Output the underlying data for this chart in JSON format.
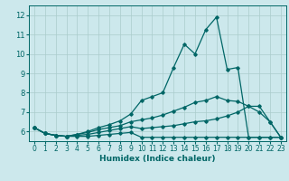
{
  "xlabel": "Humidex (Indice chaleur)",
  "bg_color": "#cce8ec",
  "line_color": "#006666",
  "grid_color": "#aacccc",
  "x": [
    0,
    1,
    2,
    3,
    4,
    5,
    6,
    7,
    8,
    9,
    10,
    11,
    12,
    13,
    14,
    15,
    16,
    17,
    18,
    19,
    20,
    21,
    22,
    23
  ],
  "series": [
    [
      6.2,
      5.9,
      5.8,
      5.75,
      5.75,
      5.75,
      5.8,
      5.85,
      5.9,
      5.95,
      5.7,
      5.7,
      5.7,
      5.7,
      5.7,
      5.7,
      5.7,
      5.7,
      5.7,
      5.7,
      5.7,
      5.7,
      5.7,
      5.7
    ],
    [
      6.2,
      5.9,
      5.8,
      5.75,
      5.8,
      5.85,
      5.95,
      6.05,
      6.15,
      6.25,
      6.15,
      6.2,
      6.25,
      6.3,
      6.4,
      6.5,
      6.55,
      6.65,
      6.8,
      7.0,
      7.3,
      7.3,
      6.5,
      5.7
    ],
    [
      6.2,
      5.9,
      5.8,
      5.75,
      5.85,
      5.95,
      6.1,
      6.2,
      6.3,
      6.5,
      6.6,
      6.7,
      6.85,
      7.05,
      7.25,
      7.5,
      7.6,
      7.8,
      7.6,
      7.55,
      7.3,
      7.0,
      6.5,
      5.7
    ],
    [
      6.2,
      5.9,
      5.8,
      5.75,
      5.85,
      6.0,
      6.2,
      6.35,
      6.55,
      6.9,
      7.6,
      7.8,
      8.0,
      9.3,
      10.5,
      10.0,
      11.25,
      11.9,
      9.2,
      9.3,
      5.7,
      5.7,
      5.7,
      5.7
    ]
  ],
  "ylim": [
    5.5,
    12.5
  ],
  "yticks": [
    6,
    7,
    8,
    9,
    10,
    11,
    12
  ],
  "xlim": [
    -0.5,
    23.5
  ],
  "xticks": [
    0,
    1,
    2,
    3,
    4,
    5,
    6,
    7,
    8,
    9,
    10,
    11,
    12,
    13,
    14,
    15,
    16,
    17,
    18,
    19,
    20,
    21,
    22,
    23
  ]
}
